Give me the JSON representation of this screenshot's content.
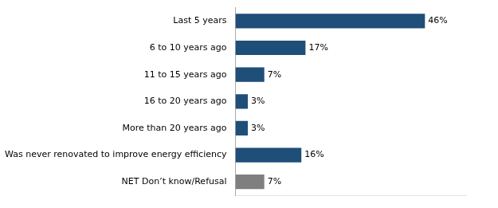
{
  "chart_data": {
    "type": "bar",
    "orientation": "horizontal",
    "categories": [
      "NET Don’t know/Refusal",
      "Was never renovated to improve energy efficiency",
      "More than 20 years ago",
      "16 to 20 years ago",
      "11 to 15 years ago",
      "6 to 10 years ago",
      "Last 5 years"
    ],
    "values": [
      7,
      16,
      3,
      3,
      7,
      17,
      46
    ],
    "value_labels": [
      "7%",
      "16%",
      "3%",
      "3%",
      "7%",
      "17%",
      "46%"
    ],
    "colors": [
      "#7f7f7f",
      "#1F4E79",
      "#1F4E79",
      "#1F4E79",
      "#1F4E79",
      "#1F4E79",
      "#1F4E79"
    ],
    "xlim": [
      0,
      56
    ],
    "data_labels": true,
    "tick_labels": "y",
    "grid": false
  }
}
